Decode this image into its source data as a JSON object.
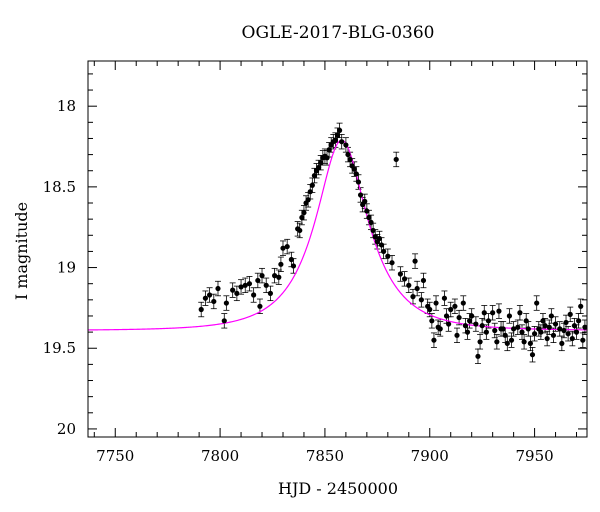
{
  "chart_data": {
    "type": "scatter",
    "title": "OGLE-2017-BLG-0360",
    "xlabel": "HJD - 2450000",
    "ylabel": "I magnitude",
    "xlim": [
      7737,
      7975
    ],
    "ylim": [
      20.05,
      17.72
    ],
    "y_inverted": true,
    "xticks": [
      7750,
      7800,
      7850,
      7900,
      7950
    ],
    "xtick_labels": [
      "7750",
      "7800",
      "7850",
      "7900",
      "7950"
    ],
    "yticks": [
      18,
      18.5,
      19,
      19.5,
      20
    ],
    "ytick_labels": [
      "18",
      "18.5",
      "19",
      "19.5",
      "20"
    ],
    "grid": false,
    "model_color": "#ff00ff",
    "model": {
      "t0": 7858,
      "tE": 26,
      "u0": 0.5,
      "baseline_mag": 19.39,
      "peak_mag": 18.21
    },
    "observations": {
      "error_bar": 0.045,
      "points": [
        [
          7791,
          19.26
        ],
        [
          7793,
          19.19
        ],
        [
          7795,
          19.17
        ],
        [
          7797,
          19.21
        ],
        [
          7799,
          19.13
        ],
        [
          7802,
          19.33
        ],
        [
          7803,
          19.22
        ],
        [
          7806,
          19.14
        ],
        [
          7808,
          19.16
        ],
        [
          7810,
          19.12
        ],
        [
          7812,
          19.11
        ],
        [
          7814,
          19.1
        ],
        [
          7816,
          19.17
        ],
        [
          7818,
          19.08
        ],
        [
          7819,
          19.24
        ],
        [
          7820,
          19.05
        ],
        [
          7822,
          19.11
        ],
        [
          7824,
          19.16
        ],
        [
          7826,
          19.05
        ],
        [
          7828,
          19.06
        ],
        [
          7829,
          18.98
        ],
        [
          7830,
          18.88
        ],
        [
          7832,
          18.87
        ],
        [
          7834,
          18.95
        ],
        [
          7835,
          18.99
        ],
        [
          7837,
          18.76
        ],
        [
          7838,
          18.77
        ],
        [
          7839,
          18.69
        ],
        [
          7840,
          18.66
        ],
        [
          7841,
          18.6
        ],
        [
          7842,
          18.58
        ],
        [
          7843,
          18.53
        ],
        [
          7844,
          18.49
        ],
        [
          7845,
          18.43
        ],
        [
          7846,
          18.4
        ],
        [
          7847,
          18.38
        ],
        [
          7848,
          18.35
        ],
        [
          7849,
          18.32
        ],
        [
          7850,
          18.31
        ],
        [
          7851,
          18.32
        ],
        [
          7852,
          18.27
        ],
        [
          7853,
          18.24
        ],
        [
          7854,
          18.22
        ],
        [
          7855,
          18.21
        ],
        [
          7856,
          18.18
        ],
        [
          7857,
          18.15
        ],
        [
          7858,
          18.22
        ],
        [
          7860,
          18.24
        ],
        [
          7861,
          18.3
        ],
        [
          7862,
          18.33
        ],
        [
          7863,
          18.37
        ],
        [
          7864,
          18.39
        ],
        [
          7865,
          18.42
        ],
        [
          7866,
          18.47
        ],
        [
          7867,
          18.55
        ],
        [
          7868,
          18.61
        ],
        [
          7869,
          18.59
        ],
        [
          7870,
          18.65
        ],
        [
          7871,
          18.69
        ],
        [
          7872,
          18.72
        ],
        [
          7873,
          18.77
        ],
        [
          7874,
          18.81
        ],
        [
          7875,
          18.84
        ],
        [
          7876,
          18.82
        ],
        [
          7877,
          18.86
        ],
        [
          7878,
          18.9
        ],
        [
          7880,
          18.93
        ],
        [
          7882,
          18.97
        ],
        [
          7884,
          18.33
        ],
        [
          7886,
          19.04
        ],
        [
          7888,
          19.07
        ],
        [
          7890,
          19.11
        ],
        [
          7892,
          19.18
        ],
        [
          7893,
          18.96
        ],
        [
          7894,
          19.13
        ],
        [
          7896,
          19.2
        ],
        [
          7897,
          19.08
        ],
        [
          7899,
          19.24
        ],
        [
          7900,
          19.26
        ],
        [
          7901,
          19.33
        ],
        [
          7902,
          19.45
        ],
        [
          7903,
          19.22
        ],
        [
          7904,
          19.37
        ],
        [
          7905,
          19.38
        ],
        [
          7907,
          19.19
        ],
        [
          7908,
          19.3
        ],
        [
          7909,
          19.35
        ],
        [
          7910,
          19.26
        ],
        [
          7912,
          19.24
        ],
        [
          7913,
          19.42
        ],
        [
          7914,
          19.31
        ],
        [
          7916,
          19.22
        ],
        [
          7917,
          19.36
        ],
        [
          7918,
          19.4
        ],
        [
          7919,
          19.33
        ],
        [
          7920,
          19.3
        ],
        [
          7922,
          19.35
        ],
        [
          7923,
          19.55
        ],
        [
          7924,
          19.46
        ],
        [
          7925,
          19.36
        ],
        [
          7926,
          19.28
        ],
        [
          7927,
          19.4
        ],
        [
          7928,
          19.33
        ],
        [
          7930,
          19.28
        ],
        [
          7931,
          19.39
        ],
        [
          7932,
          19.46
        ],
        [
          7933,
          19.27
        ],
        [
          7934,
          19.38
        ],
        [
          7935,
          19.38
        ],
        [
          7936,
          19.42
        ],
        [
          7937,
          19.47
        ],
        [
          7938,
          19.3
        ],
        [
          7939,
          19.45
        ],
        [
          7940,
          19.38
        ],
        [
          7942,
          19.37
        ],
        [
          7943,
          19.28
        ],
        [
          7944,
          19.4
        ],
        [
          7945,
          19.46
        ],
        [
          7946,
          19.33
        ],
        [
          7947,
          19.38
        ],
        [
          7948,
          19.47
        ],
        [
          7949,
          19.54
        ],
        [
          7950,
          19.41
        ],
        [
          7951,
          19.22
        ],
        [
          7952,
          19.38
        ],
        [
          7953,
          19.4
        ],
        [
          7954,
          19.33
        ],
        [
          7955,
          19.36
        ],
        [
          7956,
          19.44
        ],
        [
          7957,
          19.37
        ],
        [
          7958,
          19.3
        ],
        [
          7959,
          19.42
        ],
        [
          7960,
          19.35
        ],
        [
          7962,
          19.38
        ],
        [
          7963,
          19.47
        ],
        [
          7964,
          19.39
        ],
        [
          7965,
          19.34
        ],
        [
          7966,
          19.41
        ],
        [
          7967,
          19.29
        ],
        [
          7968,
          19.44
        ],
        [
          7969,
          19.36
        ],
        [
          7970,
          19.4
        ],
        [
          7971,
          19.33
        ],
        [
          7972,
          19.24
        ],
        [
          7973,
          19.45
        ],
        [
          7974,
          19.37
        ]
      ]
    }
  }
}
